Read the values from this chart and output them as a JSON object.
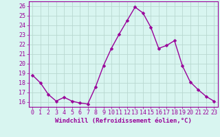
{
  "x": [
    0,
    1,
    2,
    3,
    4,
    5,
    6,
    7,
    8,
    9,
    10,
    11,
    12,
    13,
    14,
    15,
    16,
    17,
    18,
    19,
    20,
    21,
    22,
    23
  ],
  "y": [
    18.8,
    18.0,
    16.8,
    16.1,
    16.5,
    16.1,
    15.9,
    15.8,
    17.6,
    19.8,
    21.6,
    23.1,
    24.5,
    25.9,
    25.3,
    23.8,
    21.6,
    21.9,
    22.4,
    19.8,
    18.1,
    17.3,
    16.6,
    16.1
  ],
  "line_color": "#990099",
  "marker": "D",
  "marker_size": 2.5,
  "bg_color": "#d8f5f0",
  "grid_color": "#b8d8d0",
  "xlabel": "Windchill (Refroidissement éolien,°C)",
  "xlabel_fontsize": 6.5,
  "xtick_labels": [
    "0",
    "1",
    "2",
    "3",
    "4",
    "5",
    "6",
    "7",
    "8",
    "9",
    "10",
    "11",
    "12",
    "13",
    "14",
    "15",
    "16",
    "17",
    "18",
    "19",
    "20",
    "21",
    "22",
    "23"
  ],
  "ytick_labels": [
    "16",
    "17",
    "18",
    "19",
    "20",
    "21",
    "22",
    "23",
    "24",
    "25",
    "26"
  ],
  "ylim": [
    15.5,
    26.5
  ],
  "xlim": [
    -0.5,
    23.5
  ],
  "tick_fontsize": 6.0,
  "line_width": 1.0
}
